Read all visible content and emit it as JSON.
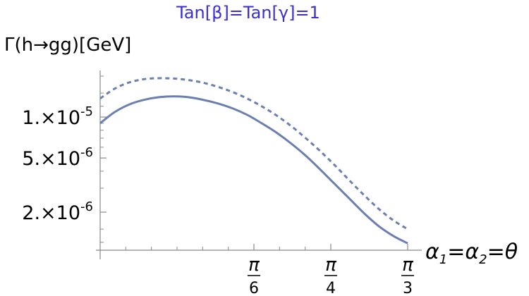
{
  "chart_data": {
    "type": "line",
    "title": "Tan[β]=Tan[γ]=1",
    "ylabel": "Γ(h→gg)[GeV]",
    "xlabel": "α₁=α₂=θ",
    "y_scale": "log",
    "xlim": [
      0.0,
      1.0472
    ],
    "ylim": [
      1.05e-06,
      2.2e-05
    ],
    "x_ticks": [
      {
        "value": 0.5236,
        "num": "π",
        "den": "6"
      },
      {
        "value": 0.7854,
        "num": "π",
        "den": "4"
      },
      {
        "value": 1.0472,
        "num": "π",
        "den": "3"
      }
    ],
    "y_ticks": [
      {
        "value": 1e-05,
        "mant": "1.",
        "exp": "-5"
      },
      {
        "value": 5e-06,
        "mant": "5.",
        "exp": "-6"
      },
      {
        "value": 2e-06,
        "mant": "2.",
        "exp": "-6"
      }
    ],
    "grid": false,
    "legend": "none",
    "series": [
      {
        "style": "solid",
        "color": "#6b7fb0",
        "x": [
          0.0,
          0.05,
          0.1,
          0.15,
          0.2,
          0.25,
          0.3,
          0.35,
          0.4,
          0.45,
          0.5,
          0.55,
          0.6,
          0.65,
          0.7,
          0.75,
          0.8,
          0.85,
          0.9,
          0.95,
          1.0,
          1.0472
        ],
        "y": [
          9e-06,
          1.09e-05,
          1.24e-05,
          1.34e-05,
          1.4e-05,
          1.42e-05,
          1.4e-05,
          1.34e-05,
          1.26e-05,
          1.16e-05,
          1.04e-05,
          9e-06,
          7.7e-06,
          6.4e-06,
          5.2e-06,
          4.1e-06,
          3.2e-06,
          2.5e-06,
          1.95e-06,
          1.57e-06,
          1.33e-06,
          1.18e-06
        ]
      },
      {
        "style": "dashed",
        "color": "#6b7fb0",
        "x": [
          0.0,
          0.05,
          0.1,
          0.15,
          0.2,
          0.25,
          0.3,
          0.35,
          0.4,
          0.45,
          0.5,
          0.55,
          0.6,
          0.65,
          0.7,
          0.75,
          0.8,
          0.85,
          0.9,
          0.95,
          1.0,
          1.0472
        ],
        "y": [
          1.37e-05,
          1.62e-05,
          1.8e-05,
          1.9e-05,
          1.93e-05,
          1.92e-05,
          1.87e-05,
          1.79e-05,
          1.67e-05,
          1.53e-05,
          1.37e-05,
          1.2e-05,
          1.03e-05,
          8.6e-06,
          7e-06,
          5.6e-06,
          4.4e-06,
          3.4e-06,
          2.65e-06,
          2.1e-06,
          1.73e-06,
          1.5e-06
        ]
      }
    ]
  }
}
